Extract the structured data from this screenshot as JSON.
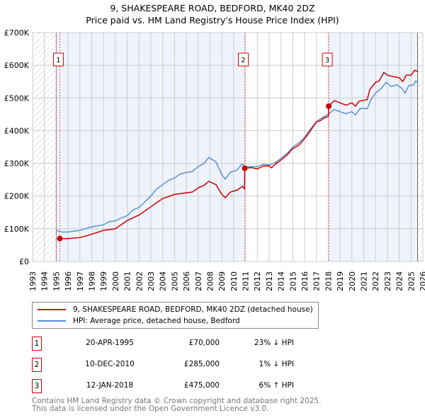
{
  "chart_data": {
    "type": "line",
    "title": "9, SHAKESPEARE ROAD, BEDFORD, MK40 2DZ",
    "subtitle": "Price paid vs. HM Land Registry's House Price Index (HPI)",
    "xlim": [
      1993,
      2026
    ],
    "ylim": [
      0,
      700000
    ],
    "y_ticks": [
      0,
      100000,
      200000,
      300000,
      400000,
      500000,
      600000,
      700000
    ],
    "y_tick_labels": [
      "£0",
      "£100K",
      "£200K",
      "£300K",
      "£400K",
      "£500K",
      "£600K",
      "£700K"
    ],
    "x_tick_labels": [
      "1993",
      "1994",
      "1995",
      "1996",
      "1997",
      "1998",
      "1999",
      "2000",
      "2001",
      "2002",
      "2003",
      "2004",
      "2005",
      "2006",
      "2007",
      "2008",
      "2009",
      "2010",
      "2011",
      "2012",
      "2013",
      "2014",
      "2015",
      "2016",
      "2017",
      "2018",
      "2019",
      "2020",
      "2021",
      "2022",
      "2023",
      "2024",
      "2025",
      "2026"
    ],
    "grid": true,
    "series": [
      {
        "name": "9, SHAKESPEARE ROAD, BEDFORD, MK40 2DZ (detached house)",
        "color": "#cc0000",
        "x": [
          1995.3,
          1996,
          1997,
          1998,
          1999,
          2000,
          2001,
          2002,
          2003,
          2003.5,
          2004,
          2005,
          2006,
          2006.5,
          2007,
          2007.5,
          2007.9,
          2008.5,
          2009,
          2009.3,
          2009.7,
          2010.3,
          2010.75,
          2010.92,
          2010.94,
          2011.5,
          2012,
          2012.5,
          2013,
          2013.2,
          2013.5,
          2014,
          2014.5,
          2015,
          2015.5,
          2016,
          2016.5,
          2017,
          2017.3,
          2017.7,
          2018.0,
          2018.04,
          2018.5,
          2019,
          2019.5,
          2020,
          2020.3,
          2020.6,
          2021.3,
          2021.5,
          2022,
          2022.3,
          2022.7,
          2023,
          2023.5,
          2024,
          2024.3,
          2024.6,
          2025.0,
          2025.3,
          2025.6
        ],
        "y": [
          70000,
          70000,
          73000,
          83000,
          95000,
          100000,
          125000,
          142000,
          167000,
          180000,
          192000,
          205000,
          210000,
          212000,
          225000,
          233000,
          245000,
          235000,
          205000,
          195000,
          212000,
          218000,
          230000,
          222000,
          285000,
          287000,
          283000,
          292000,
          292000,
          286000,
          297000,
          310000,
          325000,
          345000,
          355000,
          375000,
          400000,
          427000,
          430000,
          440000,
          443000,
          475000,
          492000,
          485000,
          478000,
          485000,
          475000,
          490000,
          495000,
          525000,
          548000,
          552000,
          578000,
          570000,
          565000,
          562000,
          550000,
          570000,
          570000,
          585000,
          580000
        ]
      },
      {
        "name": "HPI: Average price, detached house, Bedford",
        "color": "#5b8fd4",
        "x": [
          1995.0,
          1995.5,
          1996,
          1997,
          1998,
          1999,
          1999.5,
          2000,
          2000.5,
          2001,
          2001.5,
          2002,
          2002.5,
          2003,
          2003.5,
          2004,
          2004.5,
          2005,
          2005.5,
          2006,
          2006.5,
          2007,
          2007.5,
          2007.9,
          2008.5,
          2009,
          2009.3,
          2009.7,
          2010.3,
          2010.7,
          2011,
          2012,
          2012.5,
          2013,
          2013.5,
          2014,
          2014.5,
          2015,
          2015.5,
          2016,
          2016.5,
          2017,
          2017.5,
          2018,
          2018.5,
          2019,
          2019.5,
          2020,
          2020.3,
          2020.7,
          2021.3,
          2021.6,
          2022,
          2022.5,
          2022.9,
          2023.3,
          2023.8,
          2024.2,
          2024.5,
          2024.8,
          2025.2,
          2025.4,
          2025.6
        ],
        "y": [
          95000,
          90000,
          90000,
          95000,
          106000,
          112000,
          122000,
          124000,
          133000,
          140000,
          158000,
          165000,
          182000,
          200000,
          222000,
          235000,
          248000,
          255000,
          268000,
          272000,
          275000,
          290000,
          300000,
          318000,
          305000,
          265000,
          252000,
          272000,
          280000,
          298000,
          290000,
          290000,
          297000,
          295000,
          302000,
          315000,
          330000,
          350000,
          362000,
          380000,
          405000,
          428000,
          440000,
          450000,
          465000,
          458000,
          452000,
          458000,
          448000,
          468000,
          467000,
          495000,
          515000,
          530000,
          548000,
          535000,
          540000,
          530000,
          515000,
          538000,
          540000,
          552000,
          546000
        ]
      }
    ],
    "sales": [
      {
        "label": "1",
        "x": 2010.0,
        "date_x": 1995.3,
        "value": 70000
      },
      {
        "label": "2",
        "date_x": 2010.94,
        "value": 285000
      },
      {
        "label": "3",
        "date_x": 2018.04,
        "value": 475000
      }
    ],
    "legend_position": "below"
  },
  "legend": {
    "red": "9, SHAKESPEARE ROAD, BEDFORD, MK40 2DZ (detached house)",
    "blue": "HPI: Average price, detached house, Bedford"
  },
  "transactions": [
    {
      "num": "1",
      "date": "20-APR-1995",
      "price": "£70,000",
      "hpi": "23% ↓ HPI"
    },
    {
      "num": "2",
      "date": "10-DEC-2010",
      "price": "£285,000",
      "hpi": "1% ↓ HPI"
    },
    {
      "num": "3",
      "date": "12-JAN-2018",
      "price": "£475,000",
      "hpi": "6% ↑ HPI"
    }
  ],
  "footer": {
    "line1": "Contains HM Land Registry data © Crown copyright and database right 2025.",
    "line2": "This data is licensed under the Open Government Licence v3.0."
  }
}
